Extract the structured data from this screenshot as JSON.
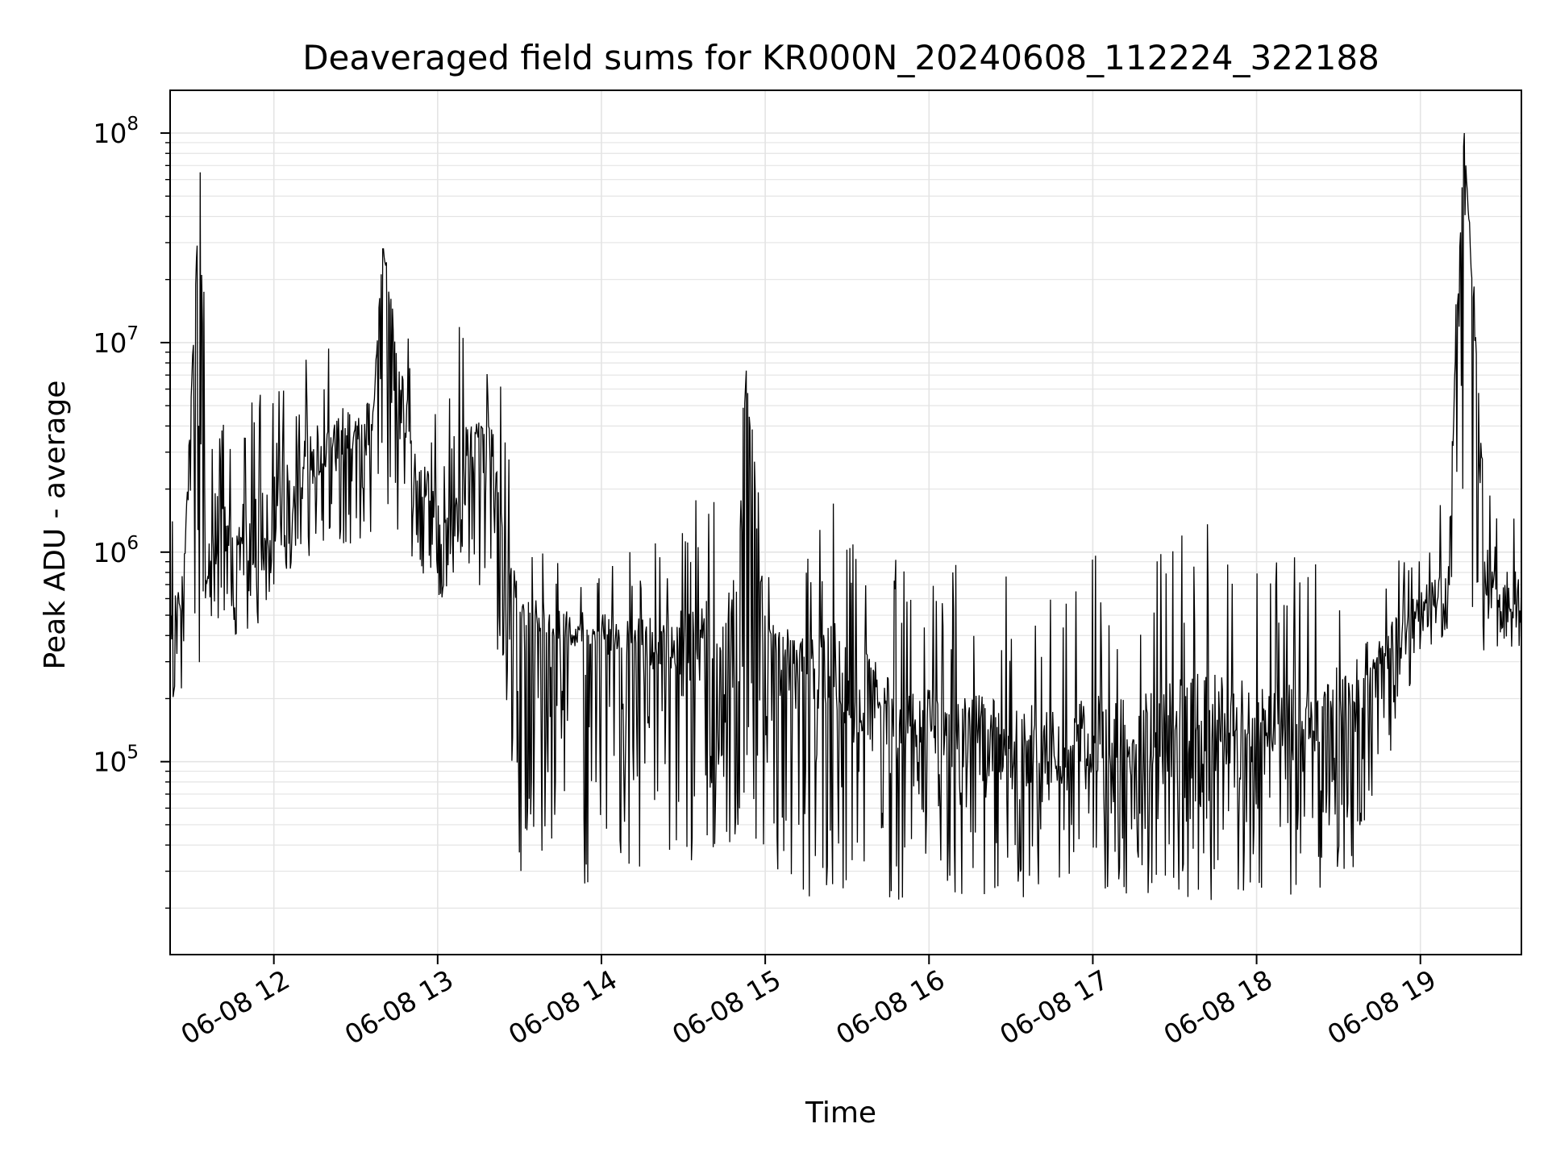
{
  "chart_data": {
    "type": "line",
    "title": "Deaveraged field sums for KR000N_20240608_112224_322188",
    "xlabel": "Time",
    "ylabel": "Peak ADU - average",
    "x_axis": {
      "type": "time",
      "range": [
        "2024-06-08 11:22",
        "2024-06-08 19:37"
      ],
      "ticks": [
        "2024-06-08 12:00",
        "2024-06-08 13:00",
        "2024-06-08 14:00",
        "2024-06-08 15:00",
        "2024-06-08 16:00",
        "2024-06-08 17:00",
        "2024-06-08 18:00",
        "2024-06-08 19:00"
      ],
      "tick_labels": [
        "06-08 12",
        "06-08 13",
        "06-08 14",
        "06-08 15",
        "06-08 16",
        "06-08 17",
        "06-08 18",
        "06-08 19"
      ]
    },
    "y_axis": {
      "scale": "log",
      "range": [
        12000,
        160000000
      ],
      "ticks": [
        100000,
        1000000,
        10000000,
        100000000
      ],
      "tick_labels": [
        {
          "base": "10",
          "exp": "5"
        },
        {
          "base": "10",
          "exp": "6"
        },
        {
          "base": "10",
          "exp": "7"
        },
        {
          "base": "10",
          "exp": "8"
        }
      ]
    },
    "grid": true,
    "line_color": "#000000",
    "series": [
      {
        "x": [
          "2024-06-08 11:22",
          "2024-06-08 11:27",
          "2024-06-08 11:33",
          "2024-06-08 11:35",
          "2024-06-08 11:45",
          "2024-06-08 11:54",
          "2024-06-08 12:00",
          "2024-06-08 12:12",
          "2024-06-08 12:23",
          "2024-06-08 12:36",
          "2024-06-08 12:40",
          "2024-06-08 12:48",
          "2024-06-08 12:52",
          "2024-06-08 13:00",
          "2024-06-08 13:05",
          "2024-06-08 13:10",
          "2024-06-08 13:20",
          "2024-06-08 13:24",
          "2024-06-08 13:30",
          "2024-06-08 13:40",
          "2024-06-08 13:50",
          "2024-06-08 14:10",
          "2024-06-08 14:30",
          "2024-06-08 14:50",
          "2024-06-08 14:53",
          "2024-06-08 15:00",
          "2024-06-08 15:15",
          "2024-06-08 15:25",
          "2024-06-08 15:35",
          "2024-06-08 15:45",
          "2024-06-08 16:00",
          "2024-06-08 16:15",
          "2024-06-08 16:30",
          "2024-06-08 16:45",
          "2024-06-08 17:00",
          "2024-06-08 17:20",
          "2024-06-08 17:40",
          "2024-06-08 18:00",
          "2024-06-08 18:20",
          "2024-06-08 18:35",
          "2024-06-08 18:50",
          "2024-06-08 19:00",
          "2024-06-08 19:10",
          "2024-06-08 19:16",
          "2024-06-08 19:25",
          "2024-06-08 19:37"
        ],
        "y": [
          400000,
          700000,
          65000000,
          900000,
          1300000,
          1000000,
          1400000,
          2500000,
          3200000,
          3800000,
          28000000,
          4000000,
          2500000,
          1500000,
          1800000,
          2500000,
          3000000,
          700000,
          500000,
          450000,
          400000,
          350000,
          300000,
          300000,
          7500000,
          350000,
          250000,
          220000,
          180000,
          150000,
          120000,
          110000,
          100000,
          100000,
          100000,
          110000,
          120000,
          130000,
          150000,
          200000,
          350000,
          550000,
          650000,
          100000000,
          600000,
          600000
        ],
        "values_min": [
          180000,
          200000,
          300000,
          500000,
          400000,
          350000,
          700000,
          900000,
          1000000,
          1200000,
          1500000,
          1000000,
          800000,
          500000,
          600000,
          1000000,
          400000,
          250000,
          30000,
          28000,
          25000,
          28000,
          32000,
          40000,
          45000,
          35000,
          22000,
          22000,
          21000,
          20000,
          20000,
          19000,
          22000,
          23000,
          25000,
          22000,
          22000,
          21000,
          23000,
          30000,
          120000,
          300000,
          380000,
          210000,
          330000,
          350000
        ],
        "values_max": [
          1600000,
          1300000,
          65000000,
          13000000,
          3000000,
          6500000,
          7000000,
          9000000,
          12000000,
          13000000,
          28000000,
          16000000,
          7500000,
          5000000,
          16000000,
          15000000,
          8500000,
          7500000,
          1000000,
          1000000,
          1000000,
          1000000,
          1900000,
          6000000,
          8000000,
          1000000,
          1000000,
          2400000,
          1700000,
          1000000,
          900000,
          900000,
          800000,
          700000,
          1000000,
          900000,
          1800000,
          900000,
          1000000,
          1000000,
          900000,
          1000000,
          2200000,
          100000000,
          1900000,
          1800000
        ]
      }
    ]
  }
}
